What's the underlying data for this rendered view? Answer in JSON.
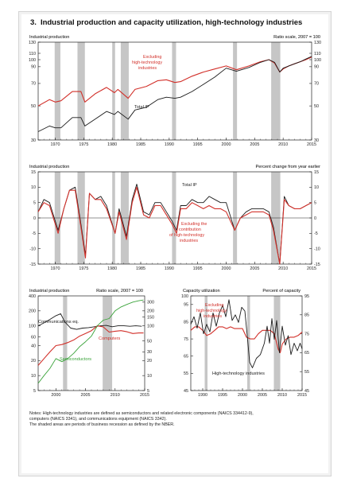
{
  "figure": {
    "number": "3.",
    "title": "Industrial production and capacity utilization, high-technology industries"
  },
  "recession_shading": [
    [
      1969.9,
      1970.9
    ],
    [
      1973.9,
      1975.2
    ],
    [
      1980.0,
      1980.5
    ],
    [
      1981.5,
      1982.9
    ],
    [
      1990.5,
      1991.2
    ],
    [
      2001.2,
      2001.9
    ],
    [
      2007.9,
      2009.5
    ]
  ],
  "colors": {
    "red": "#d2302a",
    "black": "#1b1b1b",
    "green": "#3aa33a",
    "shade": "#c6c6c6"
  },
  "notes": {
    "line1": "Notes:  High-technology industries are defined as semiconductors and related electronic components (NAICS 334412-9),",
    "line2": "computers (NAICS 3341), and communications equipment (NAICS 3342).",
    "line3": "The shaded areas are periods of business recession as defined by the NBER."
  },
  "chart_data": [
    {
      "type": "line",
      "title": "Industrial production",
      "units_label": "Ratio scale, 2007 = 100",
      "scale": "log",
      "xlim": [
        1967,
        2015
      ],
      "ylim": [
        30,
        130
      ],
      "x_ticks": [
        1970,
        1975,
        1980,
        1985,
        1990,
        1995,
        2000,
        2005,
        2010,
        2015
      ],
      "x_tick_labels": [
        "1970",
        "1975",
        "1980",
        "1985",
        "1990",
        "1995",
        "2000",
        "2005",
        "2010",
        "2015"
      ],
      "y_ticks": [
        30,
        50,
        70,
        90,
        100,
        110,
        130
      ],
      "y_tick_labels": [
        "30",
        "50",
        "70",
        "90",
        "100",
        "110",
        "130"
      ],
      "series": [
        {
          "name": "Excluding high-technology industries",
          "color": "red",
          "x": [
            1967,
            1969,
            1970,
            1971,
            1973,
            1974.5,
            1975.2,
            1977,
            1979,
            1980.4,
            1981,
            1982.8,
            1984,
            1986,
            1988,
            1989.5,
            1991,
            1992,
            1994,
            1996,
            1998,
            2000,
            2001.8,
            2004,
            2006,
            2007.5,
            2008.5,
            2009.4,
            2010,
            2011,
            2012,
            2013,
            2014,
            2015
          ],
          "y": [
            50,
            55,
            53,
            54,
            62,
            62,
            53,
            60,
            66,
            61,
            64,
            56,
            64,
            67,
            73,
            74,
            71,
            72,
            78,
            83,
            87,
            91,
            86,
            91,
            97,
            100,
            95,
            83,
            87,
            91,
            94,
            97,
            100,
            104
          ]
        },
        {
          "name": "Total IP",
          "color": "black",
          "x": [
            1967,
            1969,
            1970,
            1971,
            1973,
            1974.5,
            1975.2,
            1977,
            1979,
            1980.4,
            1981,
            1982.8,
            1984,
            1986,
            1988,
            1989.5,
            1991,
            1992,
            1994,
            1996,
            1998,
            2000,
            2001.8,
            2004,
            2006,
            2007.5,
            2008.5,
            2009.4,
            2010,
            2011,
            2012,
            2013,
            2014,
            2015
          ],
          "y": [
            34,
            37,
            36,
            36,
            42,
            42,
            37,
            41,
            46,
            44,
            46,
            41,
            47,
            49,
            55,
            57,
            56,
            57,
            62,
            69,
            77,
            88,
            84,
            89,
            96,
            100,
            96,
            83,
            88,
            91,
            94,
            97,
            101,
            105
          ]
        }
      ],
      "annotations": [
        "Excluding high-technology industries",
        "Total IP"
      ]
    },
    {
      "type": "line",
      "title": "Industrial production",
      "units_label": "Percent change from year earlier",
      "xlim": [
        1967,
        2015
      ],
      "ylim": [
        -15,
        15
      ],
      "x_ticks": [
        1970,
        1975,
        1980,
        1985,
        1990,
        1995,
        2000,
        2005,
        2010,
        2015
      ],
      "x_tick_labels": [
        "1970",
        "1975",
        "1980",
        "1985",
        "1990",
        "1995",
        "2000",
        "2005",
        "2010",
        "2015"
      ],
      "y_ticks": [
        -15,
        -10,
        -5,
        0,
        5,
        10,
        15
      ],
      "y_tick_labels": [
        "-15",
        "-10",
        "-5",
        "0",
        "5",
        "10",
        "15"
      ],
      "series": [
        {
          "name": "Total IP",
          "color": "black",
          "x": [
            1967,
            1968,
            1969,
            1970.5,
            1971.5,
            1972.5,
            1973.5,
            1974.5,
            1975.3,
            1976,
            1977,
            1978,
            1979,
            1980.5,
            1981.2,
            1982.5,
            1983.5,
            1984.3,
            1985.5,
            1986.5,
            1987.5,
            1988.5,
            1989.5,
            1990.5,
            1991.3,
            1992,
            1993,
            1994,
            1995,
            1996,
            1997,
            1998,
            1999,
            2000,
            2001.5,
            2002.5,
            2003.5,
            2004.5,
            2005.5,
            2006.5,
            2007.5,
            2008.3,
            2009.4,
            2010.2,
            2011,
            2012,
            2013,
            2014,
            2015
          ],
          "y": [
            2,
            6,
            5,
            -4,
            3,
            9,
            10,
            -2,
            -12,
            8,
            6,
            7,
            4,
            -5,
            3,
            -6,
            6,
            11,
            2,
            1,
            5,
            5,
            2,
            -1,
            -4,
            4,
            4,
            6,
            5,
            5,
            7,
            6,
            5,
            5,
            -4,
            0,
            2,
            3,
            3,
            3,
            2,
            -3,
            -15,
            7,
            4,
            3,
            3,
            4,
            5
          ]
        },
        {
          "name": "Excluding the contribution of high-technology industries",
          "color": "red",
          "x": [
            1967,
            1968,
            1969,
            1970.5,
            1971.5,
            1972.5,
            1973.5,
            1974.5,
            1975.3,
            1976,
            1977,
            1978,
            1979,
            1980.5,
            1981.2,
            1982.5,
            1983.5,
            1984.3,
            1985.5,
            1986.5,
            1987.5,
            1988.5,
            1989.5,
            1990.5,
            1991.3,
            1992,
            1993,
            1994,
            1995,
            1996,
            1997,
            1998,
            1999,
            2000,
            2001.5,
            2002.5,
            2003.5,
            2004.5,
            2005.5,
            2006.5,
            2007.5,
            2008.3,
            2009.4,
            2010.2,
            2011,
            2012,
            2013,
            2014,
            2015
          ],
          "y": [
            2,
            5,
            4,
            -5,
            3,
            9,
            9,
            -3,
            -13,
            8,
            6,
            6,
            3,
            -5,
            2,
            -7,
            5,
            10,
            1,
            0,
            4,
            4,
            1,
            -2,
            -5,
            3,
            3,
            5,
            4,
            3,
            4,
            3,
            3,
            2,
            -4,
            0,
            1,
            2,
            2,
            2,
            1,
            -4,
            -15,
            6,
            4,
            3,
            3,
            4,
            5
          ]
        }
      ],
      "annotations": [
        "Total IP",
        "Excluding the contribution of high-technology industries"
      ]
    },
    {
      "type": "line",
      "title": "Industrial production",
      "units_label": "Ratio scale, 2007 = 100",
      "scale": "log",
      "xlim": [
        1997,
        2015
      ],
      "ylim": [
        5,
        400
      ],
      "x_ticks": [
        2000,
        2005,
        2010,
        2015
      ],
      "x_tick_labels": [
        "2000",
        "2005",
        "2010",
        "2015"
      ],
      "y_ticks_left": [
        5,
        10,
        20,
        40,
        60,
        100,
        200,
        400
      ],
      "y_tick_labels_left": [
        "5",
        "10",
        "20",
        "40",
        "60",
        "100",
        "200",
        "400"
      ],
      "y_ticks_right": [
        5,
        10,
        20,
        30,
        50,
        100,
        150,
        200,
        300
      ],
      "y_tick_labels_right": [
        "5",
        "10",
        "20",
        "30",
        "50",
        "100",
        "150",
        "200",
        "300"
      ],
      "series": [
        {
          "name": "Communications eq.",
          "color": "black",
          "x": [
            1997,
            1998,
            1999,
            2000,
            2000.8,
            2001.5,
            2002.5,
            2003.5,
            2004.5,
            2005.5,
            2006.5,
            2007.5,
            2008.5,
            2009.5,
            2010.5,
            2011.5,
            2012.5,
            2013.5,
            2014.5
          ],
          "y": [
            100,
            115,
            135,
            160,
            175,
            120,
            90,
            85,
            90,
            92,
            96,
            100,
            102,
            96,
            100,
            100,
            98,
            100,
            98
          ]
        },
        {
          "name": "Computers",
          "color": "red",
          "x": [
            1997,
            1998,
            1999,
            2000,
            2001,
            2002,
            2003,
            2004,
            2005,
            2006,
            2007,
            2008,
            2009,
            2010,
            2011,
            2012,
            2013,
            2014,
            2014.8
          ],
          "y": [
            16,
            22,
            30,
            40,
            42,
            46,
            52,
            62,
            70,
            80,
            100,
            95,
            75,
            78,
            80,
            76,
            70,
            72,
            72
          ]
        },
        {
          "name": "Semiconductors",
          "color": "green",
          "x": [
            1997,
            1998,
            1999,
            2000,
            2001,
            2002,
            2003,
            2004,
            2005,
            2006,
            2007,
            2008,
            2009,
            2010,
            2011,
            2012,
            2013,
            2014,
            2014.8
          ],
          "y": [
            7,
            10,
            14,
            22,
            19,
            22,
            28,
            38,
            48,
            62,
            100,
            130,
            140,
            200,
            240,
            270,
            300,
            320,
            330
          ]
        }
      ],
      "annotations": [
        "Communications eq.",
        "Computers",
        "Semiconductors"
      ]
    },
    {
      "type": "line",
      "title": "Capacity utilization",
      "units_label": "Percent of capacity",
      "xlim": [
        1987,
        2015
      ],
      "ylim_left": [
        45,
        100
      ],
      "ylim_right": [
        45,
        95
      ],
      "x_ticks": [
        1990,
        1995,
        2000,
        2005,
        2010,
        2015
      ],
      "x_tick_labels": [
        "1990",
        "1995",
        "2000",
        "2005",
        "2010",
        "2015"
      ],
      "y_ticks_left": [
        45,
        55,
        65,
        75,
        85,
        95,
        100
      ],
      "y_tick_labels_left": [
        "45",
        "55",
        "65",
        "75",
        "85",
        "95",
        "100"
      ],
      "y_ticks_right": [
        45,
        55,
        65,
        75,
        85,
        95
      ],
      "y_tick_labels_right": [
        "45",
        "55",
        "65",
        "75",
        "85",
        "95"
      ],
      "series": [
        {
          "name": "Excluding high-technology industries",
          "color": "red",
          "x": [
            1987,
            1988,
            1989,
            1990,
            1991,
            1992,
            1993,
            1994,
            1995,
            1996,
            1997,
            1998,
            1999,
            2000,
            2001,
            2002,
            2003,
            2004,
            2005,
            2006,
            2007,
            2008,
            2009,
            2009.5,
            2010,
            2011,
            2012,
            2013,
            2014,
            2015
          ],
          "y": [
            80,
            82,
            82,
            80,
            77,
            78,
            80,
            82,
            82,
            81,
            82,
            81,
            81,
            81,
            76,
            75,
            75,
            78,
            80,
            80,
            80,
            78,
            69,
            67,
            72,
            75,
            76,
            76,
            77,
            79
          ]
        },
        {
          "name": "High-technology industries",
          "color": "black",
          "x": [
            1987,
            1987.8,
            1988.6,
            1989.4,
            1990.2,
            1991,
            1991.8,
            1992.6,
            1993.4,
            1994.2,
            1995,
            1995.8,
            1996.6,
            1997.4,
            1998.2,
            1999,
            1999.8,
            2000.6,
            2001.2,
            2001.8,
            2002.5,
            2003.5,
            2004.5,
            2005.5,
            2006.2,
            2006.8,
            2007.4,
            2008,
            2008.6,
            2009.3,
            2010,
            2010.8,
            2011.5,
            2012.2,
            2013,
            2013.8,
            2014.5,
            2015
          ],
          "y": [
            80,
            84,
            78,
            86,
            75,
            80,
            76,
            86,
            79,
            86,
            90,
            84,
            93,
            82,
            85,
            81,
            89,
            87,
            74,
            60,
            57,
            62,
            64,
            70,
            79,
            70,
            83,
            72,
            82,
            65,
            79,
            69,
            74,
            64,
            70,
            66,
            70,
            67
          ]
        }
      ],
      "annotations": [
        "Excluding high-technology industries",
        "High-technology industries"
      ]
    }
  ]
}
